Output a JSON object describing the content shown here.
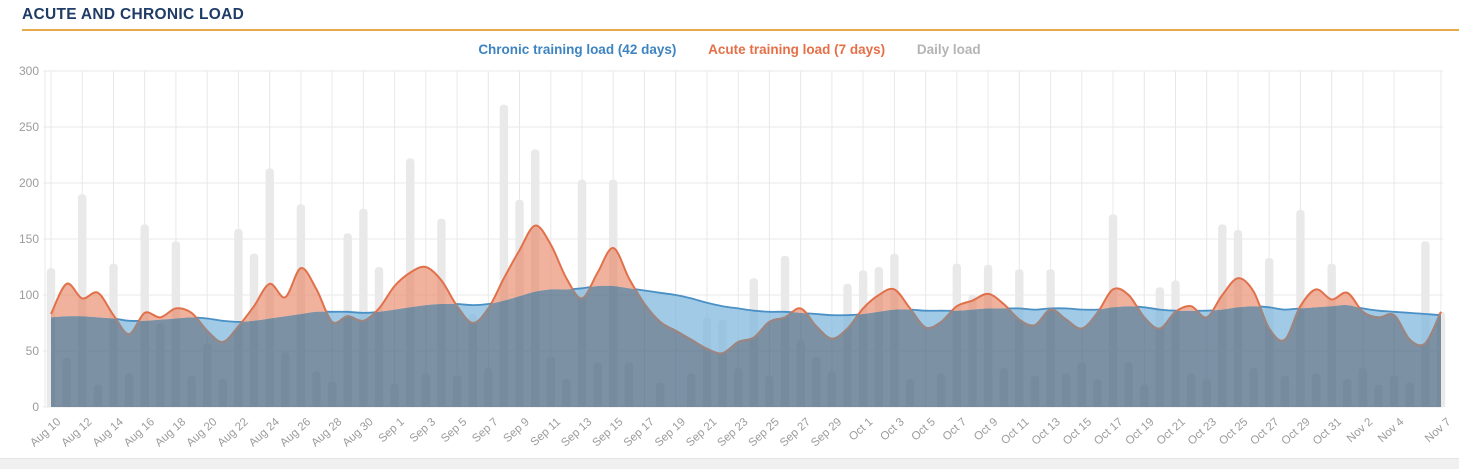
{
  "header": {
    "title": "ACUTE AND CHRONIC LOAD"
  },
  "legend": {
    "chronic_label": "Chronic training load (42 days)",
    "acute_label": "Acute training load (7 days)",
    "daily_label": "Daily load"
  },
  "colors": {
    "title": "#1e3c66",
    "title_underline": "#e8a94b",
    "legend_chronic": "#3d84c1",
    "legend_acute": "#e56f47",
    "legend_daily": "#b4b4b6",
    "chronic_line": "#4a90c5",
    "chronic_fill": "#7cb6dd",
    "acute_line": "#e0714b",
    "acute_fill": "#e98261",
    "acute_line_muted": "#8d8a8c",
    "overlap_fill": "#496681",
    "bar_fill": "#e9e9ea",
    "grid": "#e8e8e9",
    "axis_text": "#9b9b9b",
    "scrollbar_track": "#f0f0f1"
  },
  "chart_data": {
    "type": "area",
    "title": "ACUTE AND CHRONIC LOAD",
    "grid": true,
    "legend_position": "top-center",
    "ylim": [
      0,
      300
    ],
    "yticks": [
      0,
      50,
      100,
      150,
      200,
      250,
      300
    ],
    "xtick_labels": [
      "Aug 10",
      "Aug 12",
      "Aug 14",
      "Aug 16",
      "Aug 18",
      "Aug 20",
      "Aug 22",
      "Aug 24",
      "Aug 26",
      "Aug 28",
      "Aug 30",
      "Sep 1",
      "Sep 3",
      "Sep 5",
      "Sep 7",
      "Sep 9",
      "Sep 11",
      "Sep 13",
      "Sep 15",
      "Sep 17",
      "Sep 19",
      "Sep 21",
      "Sep 23",
      "Sep 25",
      "Sep 27",
      "Sep 29",
      "Oct 1",
      "Oct 3",
      "Oct 5",
      "Oct 7",
      "Oct 9",
      "Oct 11",
      "Oct 13",
      "Oct 15",
      "Oct 17",
      "Oct 19",
      "Oct 21",
      "Oct 23",
      "Oct 25",
      "Oct 27",
      "Oct 29",
      "Oct 31",
      "Nov 2",
      "Nov 4",
      "Nov 7"
    ],
    "x": [
      "Aug 10",
      "Aug 11",
      "Aug 12",
      "Aug 13",
      "Aug 14",
      "Aug 15",
      "Aug 16",
      "Aug 17",
      "Aug 18",
      "Aug 19",
      "Aug 20",
      "Aug 21",
      "Aug 22",
      "Aug 23",
      "Aug 24",
      "Aug 25",
      "Aug 26",
      "Aug 27",
      "Aug 28",
      "Aug 29",
      "Aug 30",
      "Aug 31",
      "Sep 1",
      "Sep 2",
      "Sep 3",
      "Sep 4",
      "Sep 5",
      "Sep 6",
      "Sep 7",
      "Sep 8",
      "Sep 9",
      "Sep 10",
      "Sep 11",
      "Sep 12",
      "Sep 13",
      "Sep 14",
      "Sep 15",
      "Sep 16",
      "Sep 17",
      "Sep 18",
      "Sep 19",
      "Sep 20",
      "Sep 21",
      "Sep 22",
      "Sep 23",
      "Sep 24",
      "Sep 25",
      "Sep 26",
      "Sep 27",
      "Sep 28",
      "Sep 29",
      "Sep 30",
      "Oct 1",
      "Oct 2",
      "Oct 3",
      "Oct 4",
      "Oct 5",
      "Oct 6",
      "Oct 7",
      "Oct 8",
      "Oct 9",
      "Oct 10",
      "Oct 11",
      "Oct 12",
      "Oct 13",
      "Oct 14",
      "Oct 15",
      "Oct 16",
      "Oct 17",
      "Oct 18",
      "Oct 19",
      "Oct 20",
      "Oct 21",
      "Oct 22",
      "Oct 23",
      "Oct 24",
      "Oct 25",
      "Oct 26",
      "Oct 27",
      "Oct 28",
      "Oct 29",
      "Oct 30",
      "Oct 31",
      "Nov 1",
      "Nov 2",
      "Nov 3",
      "Nov 4",
      "Nov 5",
      "Nov 6",
      "Nov 7"
    ],
    "series": [
      {
        "name": "Chronic training load (42 days)",
        "type": "area",
        "color": "#4a90c5",
        "fill": "#7cb6dd",
        "values": [
          80,
          81,
          81,
          80,
          79,
          77,
          77,
          78,
          79,
          80,
          79,
          77,
          76,
          77,
          79,
          81,
          83,
          85,
          85,
          85,
          84,
          85,
          87,
          89,
          91,
          92,
          92,
          91,
          92,
          95,
          99,
          103,
          105,
          105,
          106,
          108,
          108,
          106,
          104,
          102,
          100,
          97,
          93,
          90,
          88,
          86,
          85,
          85,
          84,
          83,
          82,
          82,
          83,
          85,
          87,
          87,
          86,
          86,
          86,
          87,
          88,
          88,
          88,
          87,
          88,
          88,
          87,
          87,
          89,
          90,
          89,
          87,
          86,
          86,
          86,
          87,
          89,
          90,
          89,
          87,
          88,
          89,
          90,
          91,
          88,
          86,
          85,
          84,
          83,
          82
        ]
      },
      {
        "name": "Acute training load (7 days)",
        "type": "area",
        "color": "#e0714b",
        "fill": "#e98261",
        "values": [
          83,
          110,
          97,
          102,
          82,
          65,
          84,
          80,
          88,
          84,
          68,
          58,
          72,
          90,
          110,
          98,
          124,
          105,
          76,
          81,
          77,
          88,
          108,
          120,
          125,
          113,
          90,
          75,
          88,
          115,
          140,
          162,
          145,
          115,
          97,
          120,
          142,
          115,
          92,
          76,
          68,
          60,
          52,
          48,
          58,
          62,
          76,
          80,
          88,
          72,
          61,
          70,
          88,
          100,
          105,
          88,
          71,
          76,
          90,
          95,
          101,
          92,
          78,
          73,
          87,
          78,
          70,
          84,
          105,
          100,
          80,
          70,
          85,
          90,
          80,
          100,
          115,
          103,
          70,
          60,
          90,
          105,
          96,
          102,
          85,
          80,
          82,
          60,
          57,
          85
        ]
      },
      {
        "name": "Daily load",
        "type": "bar",
        "color": "#e9e9ea",
        "values": [
          124,
          44,
          190,
          20,
          128,
          30,
          163,
          75,
          148,
          28,
          57,
          25,
          159,
          137,
          213,
          49,
          181,
          32,
          23,
          155,
          177,
          125,
          21,
          222,
          30,
          168,
          28,
          83,
          35,
          270,
          185,
          230,
          45,
          25,
          203,
          40,
          203,
          40,
          0,
          22,
          0,
          30,
          80,
          78,
          35,
          115,
          28,
          135,
          60,
          45,
          32,
          110,
          122,
          125,
          137,
          25,
          0,
          30,
          128,
          100,
          127,
          35,
          123,
          28,
          123,
          30,
          40,
          25,
          172,
          40,
          20,
          107,
          113,
          30,
          25,
          163,
          158,
          35,
          133,
          28,
          176,
          30,
          128,
          25,
          35,
          20,
          28,
          22,
          148,
          85
        ]
      }
    ]
  }
}
